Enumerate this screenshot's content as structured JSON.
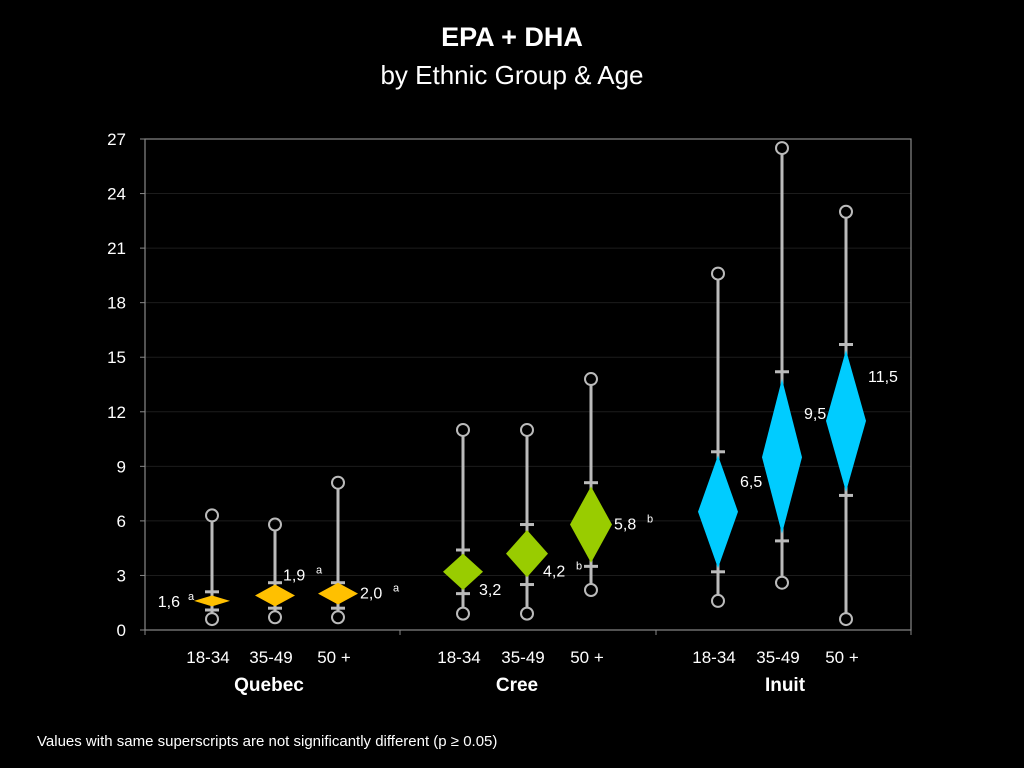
{
  "title": "EPA + DHA",
  "subtitle": "by Ethnic Group & Age",
  "footnote": "Values with same superscripts are not significantly different (p ≥ 0.05)",
  "chart_data": {
    "type": "box",
    "ylim": [
      0,
      27
    ],
    "yticks": [
      "0",
      "3",
      "6",
      "9",
      "12",
      "15",
      "18",
      "21",
      "24",
      "27"
    ],
    "grid": true,
    "colors": {
      "Quebec": "#ffc000",
      "Cree": "#99cc00",
      "Inuit": "#00ccff"
    },
    "groups": [
      {
        "name": "Quebec",
        "categories": [
          {
            "label": "18-34",
            "mean": 1.6,
            "mean_label": "1,6",
            "sup": "a",
            "min": 0.6,
            "max": 6.3,
            "lower": 1.1,
            "upper": 2.1,
            "diamond_low": 1.3,
            "diamond_high": 1.9,
            "label_side": "left"
          },
          {
            "label": "35-49",
            "mean": 1.9,
            "mean_label": "1,9",
            "sup": "a",
            "min": 0.7,
            "max": 5.8,
            "lower": 1.2,
            "upper": 2.6,
            "diamond_low": 1.3,
            "diamond_high": 2.5,
            "label_side": "upper-left"
          },
          {
            "label": "50 +",
            "mean": 2.0,
            "mean_label": "2,0",
            "sup": "a",
            "min": 0.7,
            "max": 8.1,
            "lower": 1.2,
            "upper": 2.6,
            "diamond_low": 1.4,
            "diamond_high": 2.6,
            "label_side": "right"
          }
        ]
      },
      {
        "name": "Cree",
        "categories": [
          {
            "label": "18-34",
            "mean": 3.2,
            "mean_label": "3,2",
            "sup": "",
            "min": 0.9,
            "max": 11.0,
            "lower": 2.0,
            "upper": 4.4,
            "diamond_low": 2.2,
            "diamond_high": 4.2,
            "label_side": "lower-right"
          },
          {
            "label": "35-49",
            "mean": 4.2,
            "mean_label": "4,2",
            "sup": "b",
            "min": 0.9,
            "max": 11.0,
            "lower": 2.5,
            "upper": 5.8,
            "diamond_low": 2.9,
            "diamond_high": 5.5,
            "label_side": "lower-right"
          },
          {
            "label": "50 +",
            "mean": 5.8,
            "mean_label": "5,8",
            "sup": "b",
            "min": 2.2,
            "max": 13.8,
            "lower": 3.5,
            "upper": 8.1,
            "diamond_low": 3.7,
            "diamond_high": 7.9,
            "label_side": "right"
          }
        ]
      },
      {
        "name": "Inuit",
        "categories": [
          {
            "label": "18-34",
            "mean": 6.5,
            "mean_label": "6,5",
            "sup": "",
            "min": 1.6,
            "max": 19.6,
            "lower": 3.2,
            "upper": 9.8,
            "diamond_low": 3.4,
            "diamond_high": 9.6,
            "label_side": "upper-right"
          },
          {
            "label": "35-49",
            "mean": 9.5,
            "mean_label": "9,5",
            "sup": "",
            "min": 2.6,
            "max": 26.5,
            "lower": 4.9,
            "upper": 14.2,
            "diamond_low": 5.3,
            "diamond_high": 13.8,
            "label_side": "upper-right"
          },
          {
            "label": "50 +",
            "mean": 11.5,
            "mean_label": "11,5",
            "sup": "",
            "min": 0.6,
            "max": 23.0,
            "lower": 7.4,
            "upper": 15.7,
            "diamond_low": 7.6,
            "diamond_high": 15.4,
            "label_side": "upper-right"
          }
        ]
      }
    ]
  }
}
